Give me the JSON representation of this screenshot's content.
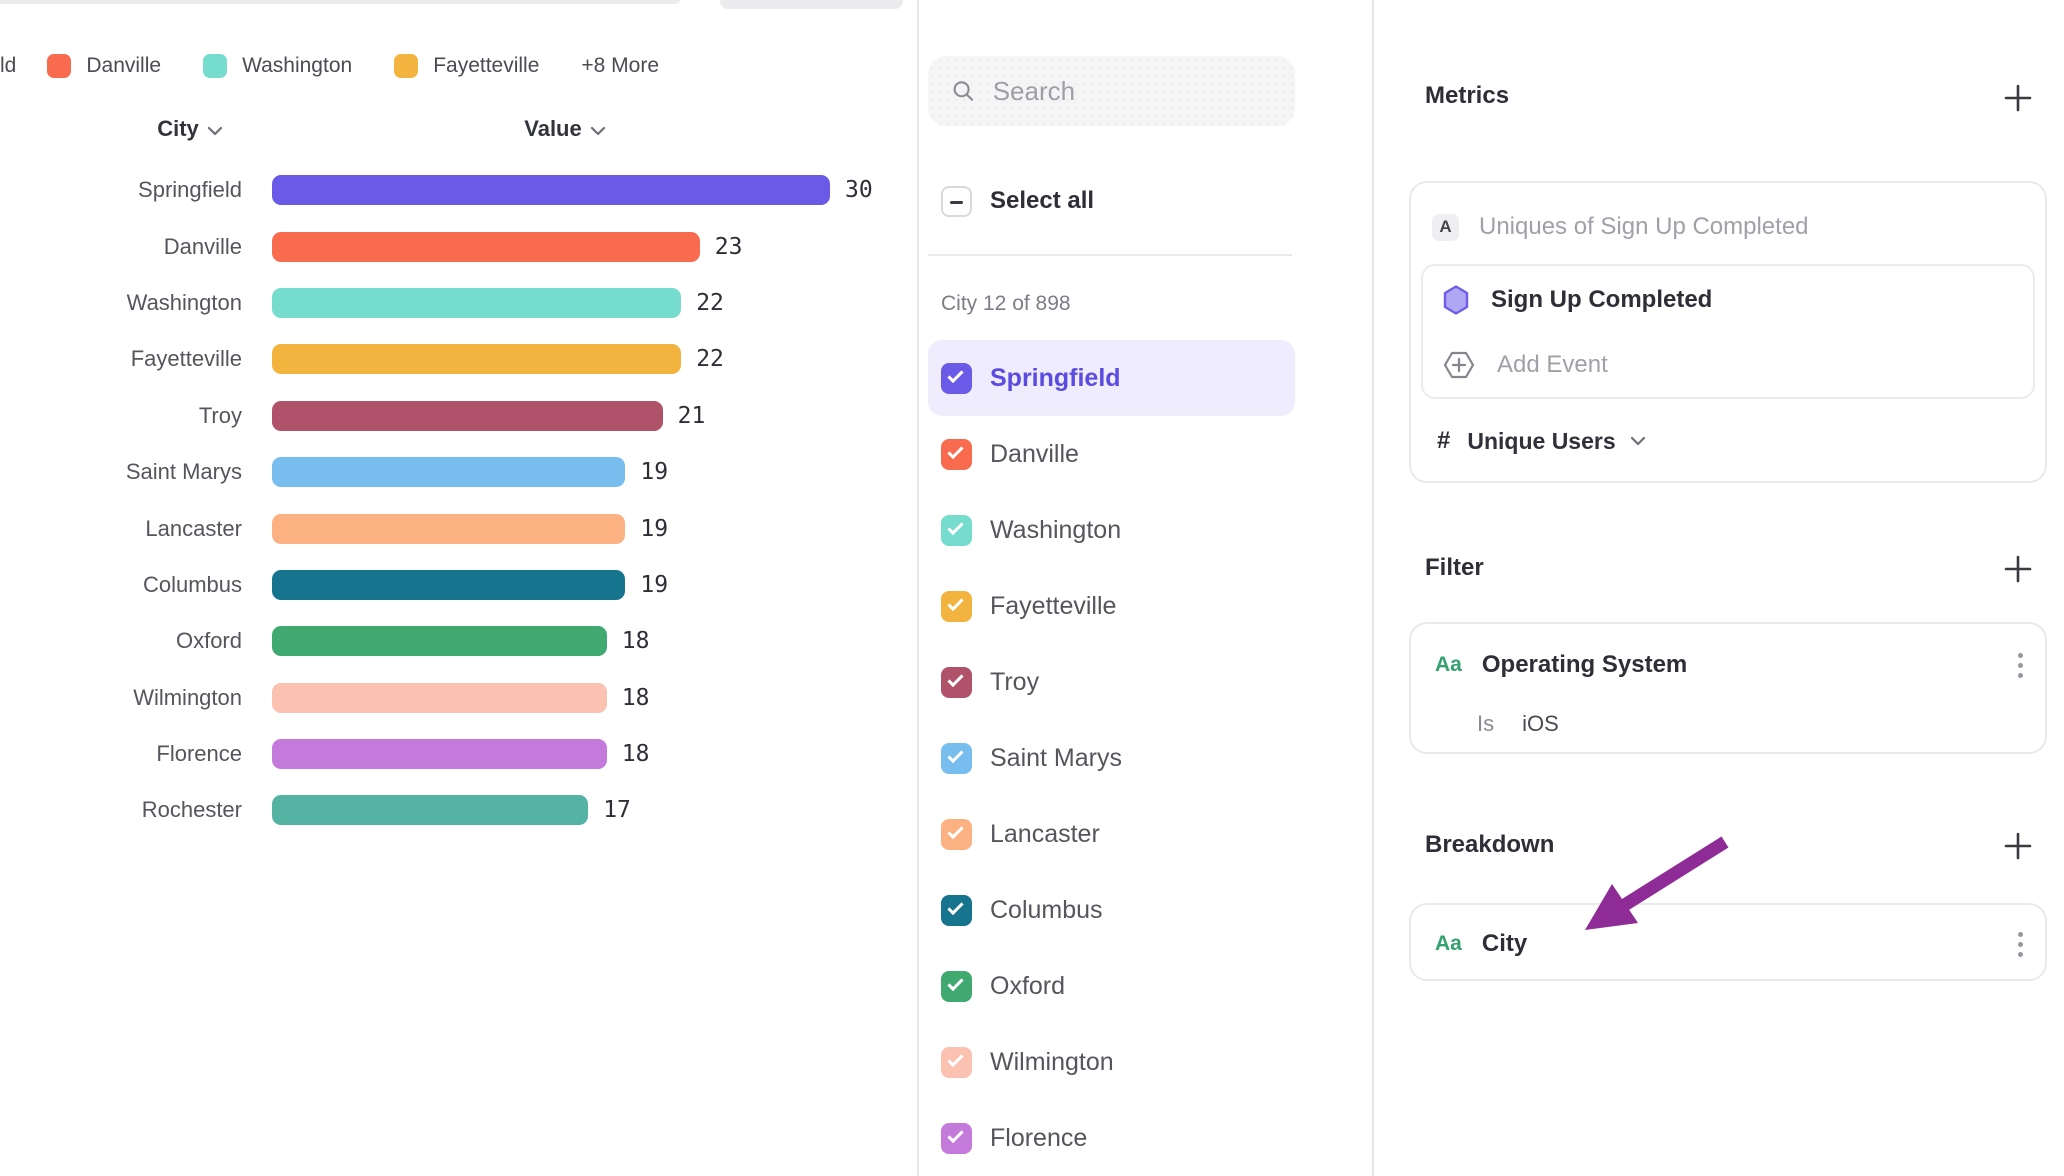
{
  "chart_data": {
    "type": "bar",
    "orientation": "horizontal",
    "title": "",
    "column_headers": {
      "category": "City",
      "value": "Value"
    },
    "categories": [
      "Springfield",
      "Danville",
      "Washington",
      "Fayetteville",
      "Troy",
      "Saint Marys",
      "Lancaster",
      "Columbus",
      "Oxford",
      "Wilmington",
      "Florence",
      "Rochester"
    ],
    "values": [
      30,
      23,
      22,
      22,
      21,
      19,
      19,
      19,
      18,
      18,
      18,
      17
    ],
    "colors": [
      "#6A5AE8",
      "#F96B4F",
      "#76DCCD",
      "#F2B43E",
      "#B0536A",
      "#77BEEF",
      "#FBB181",
      "#17748F",
      "#3FA970",
      "#FBC1B1",
      "#C37ADB",
      "#55B3A4"
    ],
    "xlim": [
      0,
      30
    ],
    "grid": false,
    "legend": {
      "position": "top",
      "partial_first_item": "ld",
      "items": [
        {
          "label": "Danville",
          "color": "#F96B4F"
        },
        {
          "label": "Washington",
          "color": "#76DCCD"
        },
        {
          "label": "Fayetteville",
          "color": "#F2B43E"
        }
      ],
      "more_label": "+8 More"
    }
  },
  "selector_panel": {
    "search_placeholder": "Search",
    "select_all_label": "Select all",
    "count_label": "City 12 of 898",
    "items": [
      {
        "label": "Springfield",
        "color": "#6A5AE8",
        "checked": true,
        "highlighted": true
      },
      {
        "label": "Danville",
        "color": "#F96B4F",
        "checked": true,
        "highlighted": false
      },
      {
        "label": "Washington",
        "color": "#76DCCD",
        "checked": true,
        "highlighted": false
      },
      {
        "label": "Fayetteville",
        "color": "#F2B43E",
        "checked": true,
        "highlighted": false
      },
      {
        "label": "Troy",
        "color": "#B0536A",
        "checked": true,
        "highlighted": false
      },
      {
        "label": "Saint Marys",
        "color": "#77BEEF",
        "checked": true,
        "highlighted": false
      },
      {
        "label": "Lancaster",
        "color": "#FBB181",
        "checked": true,
        "highlighted": false
      },
      {
        "label": "Columbus",
        "color": "#17748F",
        "checked": true,
        "highlighted": false
      },
      {
        "label": "Oxford",
        "color": "#3FA970",
        "checked": true,
        "highlighted": false
      },
      {
        "label": "Wilmington",
        "color": "#FBC1B1",
        "checked": true,
        "highlighted": false
      },
      {
        "label": "Florence",
        "color": "#C37ADB",
        "checked": true,
        "highlighted": false
      }
    ]
  },
  "builder_panel": {
    "metrics": {
      "heading": "Metrics",
      "slot_label": "A",
      "slot_text": "Uniques of Sign Up Completed",
      "event_name": "Sign Up Completed",
      "add_event_label": "Add Event",
      "aggregation_symbol": "#",
      "aggregation_label": "Unique Users"
    },
    "filter": {
      "heading": "Filter",
      "type_badge": "Aa",
      "property": "Operating System",
      "operator": "Is",
      "value": "iOS"
    },
    "breakdown": {
      "heading": "Breakdown",
      "type_badge": "Aa",
      "property": "City"
    }
  },
  "theme": {
    "accent_purple": "#6A5AE8",
    "highlight_row_bg": "#EFECFD",
    "highlight_text": "#5B4BE0",
    "type_badge_green": "#34A26E",
    "annotation_arrow": "#8E2B96"
  }
}
